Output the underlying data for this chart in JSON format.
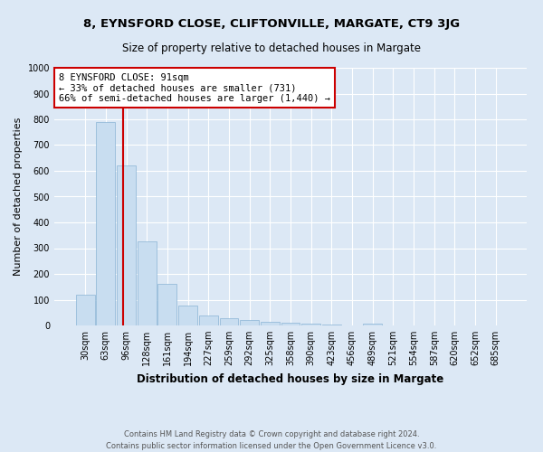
{
  "title": "8, EYNSFORD CLOSE, CLIFTONVILLE, MARGATE, CT9 3JG",
  "subtitle": "Size of property relative to detached houses in Margate",
  "xlabel": "Distribution of detached houses by size in Margate",
  "ylabel": "Number of detached properties",
  "bar_labels": [
    "30sqm",
    "63sqm",
    "96sqm",
    "128sqm",
    "161sqm",
    "194sqm",
    "227sqm",
    "259sqm",
    "292sqm",
    "325sqm",
    "358sqm",
    "390sqm",
    "423sqm",
    "456sqm",
    "489sqm",
    "521sqm",
    "554sqm",
    "587sqm",
    "620sqm",
    "652sqm",
    "685sqm"
  ],
  "bar_values": [
    120,
    790,
    620,
    325,
    160,
    78,
    38,
    27,
    22,
    15,
    12,
    6,
    5,
    1,
    7,
    0,
    0,
    0,
    0,
    0,
    0
  ],
  "bar_color": "#c8ddf0",
  "bar_edge_color": "#8ab4d4",
  "annotation_title": "8 EYNSFORD CLOSE: 91sqm",
  "annotation_line1": "← 33% of detached houses are smaller (731)",
  "annotation_line2": "66% of semi-detached houses are larger (1,440) →",
  "annotation_box_color": "#ffffff",
  "annotation_box_edge_color": "#cc0000",
  "vline_color": "#cc0000",
  "ylim": [
    0,
    1000
  ],
  "yticks": [
    0,
    100,
    200,
    300,
    400,
    500,
    600,
    700,
    800,
    900,
    1000
  ],
  "footnote1": "Contains HM Land Registry data © Crown copyright and database right 2024.",
  "footnote2": "Contains public sector information licensed under the Open Government Licence v3.0.",
  "bg_color": "#dce8f5",
  "plot_bg_color": "#dce8f5",
  "grid_color": "#ffffff",
  "title_fontsize": 9.5,
  "subtitle_fontsize": 8.5,
  "xlabel_fontsize": 8.5,
  "ylabel_fontsize": 8,
  "tick_fontsize": 7,
  "annotation_fontsize": 7.5,
  "footnote_fontsize": 6
}
